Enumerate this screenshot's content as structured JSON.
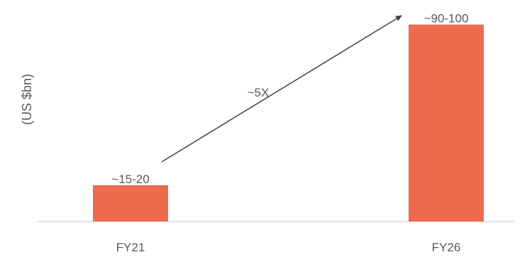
{
  "chart_data": {
    "type": "bar",
    "categories": [
      "FY21",
      "FY26"
    ],
    "values": [
      17.5,
      95
    ],
    "data_labels": [
      "~15-20",
      "~90-100"
    ],
    "ylabel": "(US $bn)",
    "ylim": [
      0,
      100
    ],
    "grid": false,
    "annotation": {
      "text": "~5X",
      "from": "FY21",
      "to": "FY26"
    },
    "colors": {
      "bar": "#EE6B4D",
      "text": "#595959",
      "arrow": "#404040",
      "axis": "#D9D9D9"
    }
  }
}
